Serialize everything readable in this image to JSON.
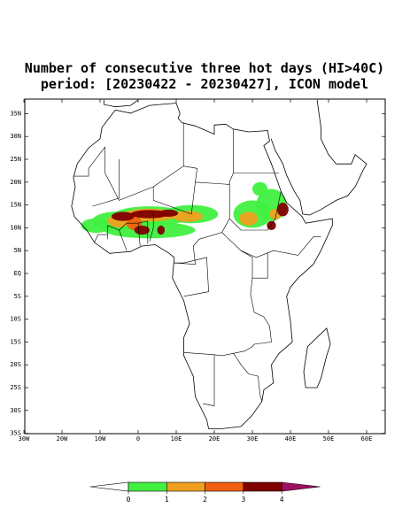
{
  "title_lines": [
    "Number of consecutive three hot days (HI>40C)",
    "period: [20230422 - 20230427], ICON model"
  ],
  "lat_ticks": [
    {
      "value": 35,
      "label": "35N"
    },
    {
      "value": 30,
      "label": "30N"
    },
    {
      "value": 25,
      "label": "25N"
    },
    {
      "value": 20,
      "label": "20N"
    },
    {
      "value": 15,
      "label": "15N"
    },
    {
      "value": 10,
      "label": "10N"
    },
    {
      "value": 5,
      "label": "5N"
    },
    {
      "value": 0,
      "label": "EQ"
    },
    {
      "value": -5,
      "label": "5S"
    },
    {
      "value": -10,
      "label": "10S"
    },
    {
      "value": -15,
      "label": "15S"
    },
    {
      "value": -20,
      "label": "20S"
    },
    {
      "value": -25,
      "label": "25S"
    },
    {
      "value": -30,
      "label": "30S"
    },
    {
      "value": -35,
      "label": "35S"
    }
  ],
  "lon_ticks": [
    {
      "value": -30,
      "label": "30W"
    },
    {
      "value": -20,
      "label": "20W"
    },
    {
      "value": -10,
      "label": "10W"
    },
    {
      "value": 0,
      "label": "0"
    },
    {
      "value": 10,
      "label": "10E"
    },
    {
      "value": 20,
      "label": "20E"
    },
    {
      "value": 30,
      "label": "30E"
    },
    {
      "value": 40,
      "label": "40E"
    },
    {
      "value": 50,
      "label": "50E"
    },
    {
      "value": 60,
      "label": "60E"
    }
  ],
  "colorbar": {
    "levels": [
      0,
      1,
      2,
      3,
      4
    ],
    "colors": [
      "#ffffff",
      "#40f040",
      "#f0a020",
      "#f06010",
      "#800000",
      "#a01060"
    ]
  }
}
